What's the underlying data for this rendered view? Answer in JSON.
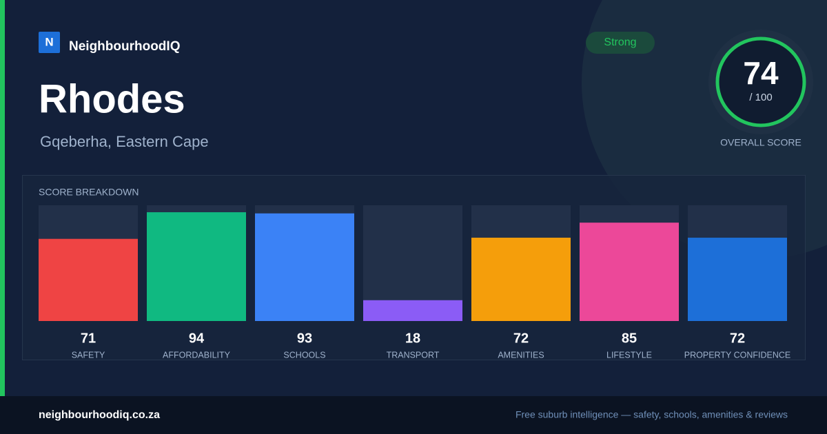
{
  "brand": {
    "logo": "N",
    "name": "NeighbourhoodIQ"
  },
  "badge": "Strong",
  "suburb": "Rhodes",
  "location": "Gqeberha, Eastern Cape",
  "overall_score": {
    "value": 74,
    "out_of": "/ 100",
    "label": "OVERALL SCORE"
  },
  "chart_data": {
    "type": "bar",
    "title": "SCORE BREAKDOWN",
    "categories": [
      "SAFETY",
      "AFFORDABILITY",
      "SCHOOLS",
      "TRANSPORT",
      "AMENITIES",
      "LIFESTYLE",
      "PROPERTY CONFIDENCE"
    ],
    "values": [
      71,
      94,
      93,
      18,
      72,
      85,
      72
    ],
    "colors": [
      "#ef4444",
      "#10b981",
      "#3b82f6",
      "#8b5cf6",
      "#f59e0b",
      "#ec4899",
      "#1d6fd8"
    ],
    "ylim": [
      0,
      100
    ]
  },
  "footer": {
    "url": "neighbourhoodiq.co.za",
    "tagline": "Free suburb intelligence — safety, schools, amenities & reviews"
  }
}
